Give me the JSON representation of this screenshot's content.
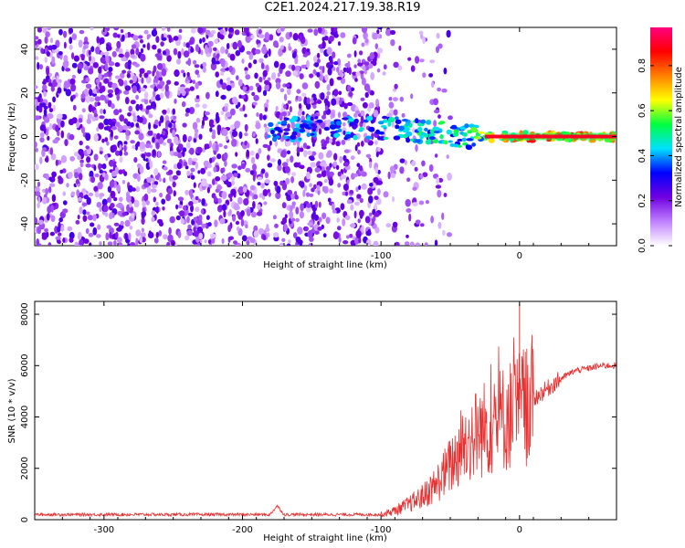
{
  "title": "C2E1.2024.217.19.38.R19",
  "chart_data": [
    {
      "type": "heatmap",
      "xlabel": "Height of straight line (km)",
      "ylabel": "Frequency (Hz)",
      "xlim": [
        -350,
        70
      ],
      "ylim": [
        -50,
        50
      ],
      "xticks": [
        -300,
        -200,
        -100,
        0
      ],
      "yticks": [
        -40,
        -20,
        0,
        20,
        40
      ],
      "grid": false,
      "colorbar": {
        "label": "Normalized spectral amplitude",
        "range": [
          0,
          0.97
        ],
        "ticks": [
          0.0,
          0.2,
          0.4,
          0.6,
          0.8
        ],
        "colors": [
          "#ffffff",
          "#c080ff",
          "#7000e0",
          "#0000ff",
          "#00e0ff",
          "#00ff40",
          "#ffff00",
          "#ff8000",
          "#ff0000",
          "#ff0080"
        ]
      },
      "ridge": {
        "description_x": [
          -180,
          -140,
          -100,
          -80,
          -60,
          -40,
          -20,
          0,
          20,
          70
        ],
        "center_hz": [
          3,
          4,
          4,
          3,
          2,
          0,
          0,
          0,
          0,
          0
        ],
        "peak_amplitude": [
          0.5,
          0.45,
          0.5,
          0.55,
          0.6,
          0.55,
          0.75,
          0.9,
          0.95,
          0.95
        ]
      }
    },
    {
      "type": "line",
      "xlabel": "Height of straight line (km)",
      "ylabel": "SNR (10 * v/v)",
      "xlim": [
        -350,
        70
      ],
      "ylim": [
        0,
        8500
      ],
      "xticks": [
        -300,
        -200,
        -100,
        0
      ],
      "yticks": [
        0,
        2000,
        4000,
        6000,
        8000
      ],
      "grid": false,
      "color": "#e83030",
      "anchors": {
        "x": [
          -350,
          -180,
          -175,
          -170,
          -100,
          -90,
          -80,
          -70,
          -60,
          -50,
          -40,
          -30,
          -20,
          -10,
          0,
          10,
          20,
          30,
          40,
          50,
          60,
          70
        ],
        "y": [
          200,
          200,
          550,
          200,
          200,
          350,
          600,
          900,
          1400,
          2100,
          2900,
          3400,
          3700,
          4000,
          4300,
          4700,
          5100,
          5500,
          5800,
          5900,
          6000,
          6000
        ]
      },
      "spike": {
        "x": 0,
        "y": 8400
      }
    }
  ]
}
